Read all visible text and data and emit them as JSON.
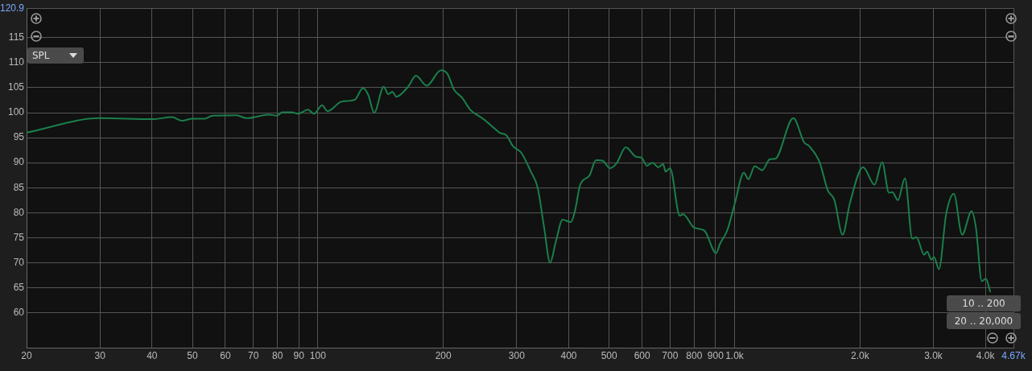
{
  "chart_data": {
    "type": "line",
    "log": "x",
    "grid": true,
    "legend": false,
    "marker": "none",
    "line_style": "solid",
    "xlim": [
      20,
      4670
    ],
    "ylim": [
      53,
      120.9
    ],
    "xticks": [
      20,
      30,
      40,
      50,
      60,
      70,
      80,
      90,
      100,
      200,
      300,
      400,
      500,
      600,
      700,
      800,
      900,
      {
        "value": 1000,
        "label": "1.0k"
      },
      {
        "value": 2000,
        "label": "2.0k"
      },
      {
        "value": 3000,
        "label": "3.0k"
      },
      {
        "value": 4000,
        "label": "4.0k"
      },
      {
        "value": 4670,
        "label": "4.67k"
      }
    ],
    "yticks": [
      60,
      65,
      70,
      75,
      80,
      85,
      90,
      95,
      100,
      105,
      110,
      115,
      {
        "value": 120.9,
        "label": "120.9"
      }
    ],
    "annotations": [
      "SPL",
      "10 .. 200",
      "20 .. 20,000"
    ],
    "series": [
      {
        "color": "#1b7f4b",
        "x": [
          20,
          30,
          40,
          44.7,
          47.2,
          50,
          53.4,
          55.9,
          63.9,
          67.3,
          76.3,
          79.8,
          82.2,
          86.6,
          89.6,
          94.7,
          97.9,
          102.4,
          105.5,
          113.9,
          122.7,
          128.3,
          132.2,
          136.5,
          143.9,
          147.6,
          150.9,
          154.3,
          165,
          171.9,
          182.5,
          197.4,
          204.6,
          212.3,
          221.9,
          232.1,
          249.9,
          265,
          273,
          283.3,
          294,
          307.7,
          324.5,
          336.9,
          349.2,
          360.9,
          372.7,
          386.7,
          404.6,
          413.6,
          426.3,
          448.3,
          465.1,
          482.9,
          501.6,
          521.3,
          548.2,
          579.8,
          597.9,
          616.2,
          635.7,
          655.3,
          673.9,
          683.2,
          700,
          738.9,
          752,
          800.3,
          846.7,
          903,
          923,
          960.7,
          1001,
          1053,
          1079,
          1118,
          1165,
          1216,
          1252,
          1384,
          1468,
          1511,
          1600,
          1673,
          1735,
          1817,
          1890,
          2034,
          2167,
          2260,
          2347,
          2390,
          2467,
          2563,
          2670,
          2732,
          2849,
          2900,
          2966,
          3011,
          3093,
          3219,
          3359,
          3516,
          3705,
          3795,
          3920,
          4009,
          4110
        ],
        "values": [
          96,
          98.9,
          98.7,
          99.1,
          98.4,
          98.8,
          98.8,
          99.4,
          99.5,
          98.9,
          99.6,
          99.4,
          100.1,
          100.1,
          99.8,
          100.6,
          99.8,
          101.5,
          100.3,
          102.2,
          102.6,
          104.9,
          103.5,
          100,
          105.2,
          103.7,
          104.2,
          103.2,
          105.3,
          107.4,
          105.4,
          108.5,
          107.8,
          104.6,
          103,
          100.6,
          98.7,
          96.9,
          96,
          95.5,
          93.3,
          92,
          88.2,
          85,
          77,
          70,
          74.3,
          78.6,
          78.1,
          80.2,
          85.6,
          87.4,
          90.5,
          90.4,
          88.9,
          89.9,
          93.1,
          91.2,
          91,
          89.4,
          90,
          89.1,
          89.7,
          88.2,
          88.9,
          79.4,
          79.7,
          77,
          76.4,
          71.9,
          73.8,
          76.5,
          81.8,
          88,
          86.7,
          89.3,
          88.5,
          90.7,
          90.8,
          98.9,
          94.1,
          93.3,
          90.1,
          84.5,
          82.6,
          75.6,
          81.8,
          89.1,
          85.6,
          90.1,
          84,
          84.1,
          82.5,
          86.9,
          74.8,
          75.1,
          71.6,
          72.2,
          70.6,
          71.1,
          68.7,
          79.7,
          83.8,
          75.6,
          80.3,
          77,
          66.3,
          66.8,
          64.1
        ]
      }
    ]
  }
}
